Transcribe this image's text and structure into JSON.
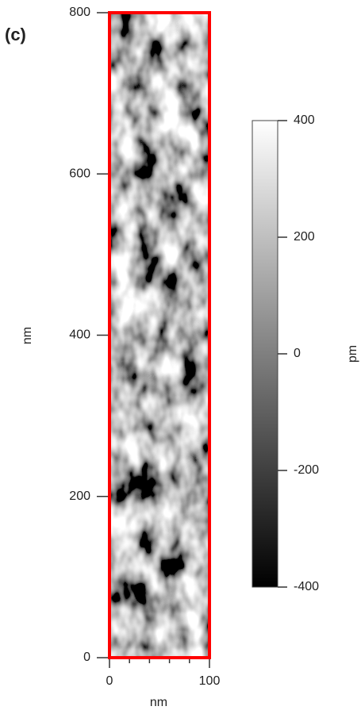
{
  "chart_data": {
    "type": "image",
    "panel_label": "(c)",
    "xlabel": "nm",
    "ylabel": "nm",
    "xlim": [
      0,
      100
    ],
    "xticks": [
      0,
      100
    ],
    "xminorticks": [
      20,
      40,
      60,
      80
    ],
    "ylim": [
      0,
      800
    ],
    "yticks": [
      0,
      200,
      400,
      600,
      800
    ],
    "border_color": "#ff0000",
    "colorbar": {
      "label": "pm",
      "lim": [
        -400,
        400
      ],
      "ticks": [
        -400,
        -200,
        0,
        200,
        400
      ],
      "colors": [
        "#000000",
        "#ffffff"
      ]
    }
  }
}
